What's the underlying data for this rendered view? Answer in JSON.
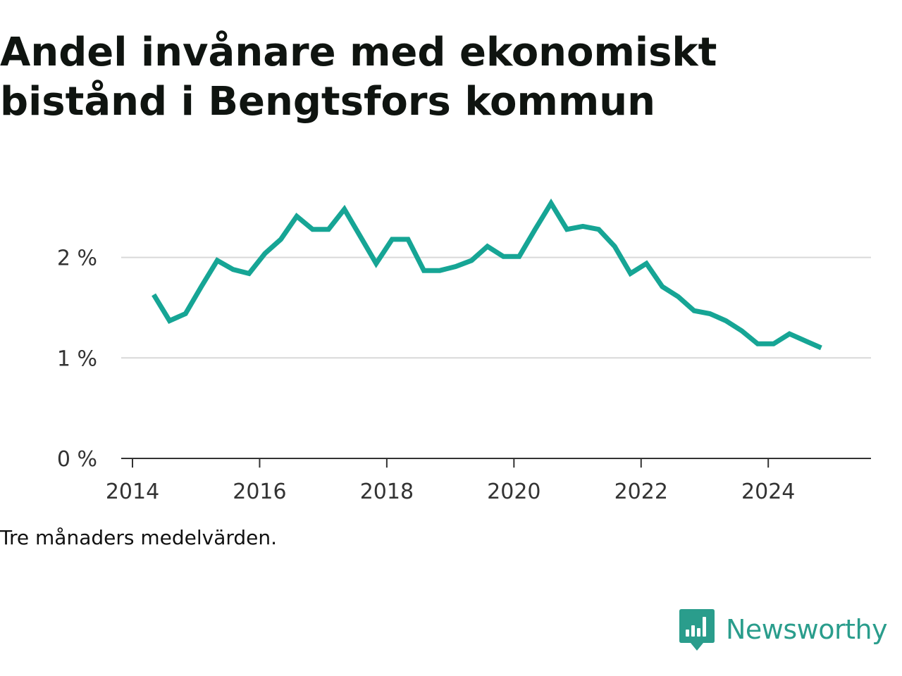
{
  "title_lines": [
    "Andel invånare med ekonomiskt",
    "bistånd i Bengtsfors kommun"
  ],
  "note": "Tre månaders medelvärden.",
  "brand": {
    "name": "Newsworthy",
    "logo_icon": "newsworthy-bar-chart-icon"
  },
  "colors": {
    "line": "#16a595",
    "grid": "#d9d9d9",
    "axis": "#333333",
    "brand": "#2a9d8c"
  },
  "chart_data": {
    "type": "line",
    "title": "Andel invånare med ekonomiskt bistånd i Bengtsfors kommun",
    "xlabel": "",
    "ylabel": "",
    "x_ticks": [
      2014,
      2016,
      2018,
      2020,
      2022,
      2024
    ],
    "y_ticks": [
      0,
      1,
      2
    ],
    "y_tick_labels": [
      "0 %",
      "1 %",
      "2 %"
    ],
    "ylim": [
      0,
      2.6
    ],
    "xlim": [
      2014,
      2025.35
    ],
    "grid": "horizontal",
    "series": [
      {
        "x": [
          "2014-05",
          "2014-08",
          "2014-11",
          "2015-02",
          "2015-05",
          "2015-08",
          "2015-11",
          "2016-02",
          "2016-05",
          "2016-08",
          "2016-11",
          "2017-02",
          "2017-05",
          "2017-08",
          "2017-11",
          "2018-02",
          "2018-05",
          "2018-08",
          "2018-11",
          "2019-02",
          "2019-05",
          "2019-08",
          "2019-11",
          "2020-02",
          "2020-05",
          "2020-08",
          "2020-11",
          "2021-02",
          "2021-05",
          "2021-08",
          "2021-11",
          "2022-02",
          "2022-05",
          "2022-08",
          "2022-11",
          "2023-02",
          "2023-05",
          "2023-08",
          "2023-11",
          "2024-02",
          "2024-05",
          "2024-08",
          "2024-11"
        ],
        "values": [
          1.63,
          1.37,
          1.44,
          1.71,
          1.97,
          1.88,
          1.84,
          2.04,
          2.18,
          2.41,
          2.28,
          2.28,
          2.48,
          2.21,
          1.94,
          2.18,
          2.18,
          1.87,
          1.87,
          1.91,
          1.97,
          2.11,
          2.01,
          2.01,
          2.28,
          2.54,
          2.28,
          2.31,
          2.28,
          2.11,
          1.84,
          1.94,
          1.71,
          1.61,
          1.47,
          1.44,
          1.37,
          1.27,
          1.14,
          1.14,
          1.24,
          1.17,
          1.1
        ]
      }
    ]
  }
}
